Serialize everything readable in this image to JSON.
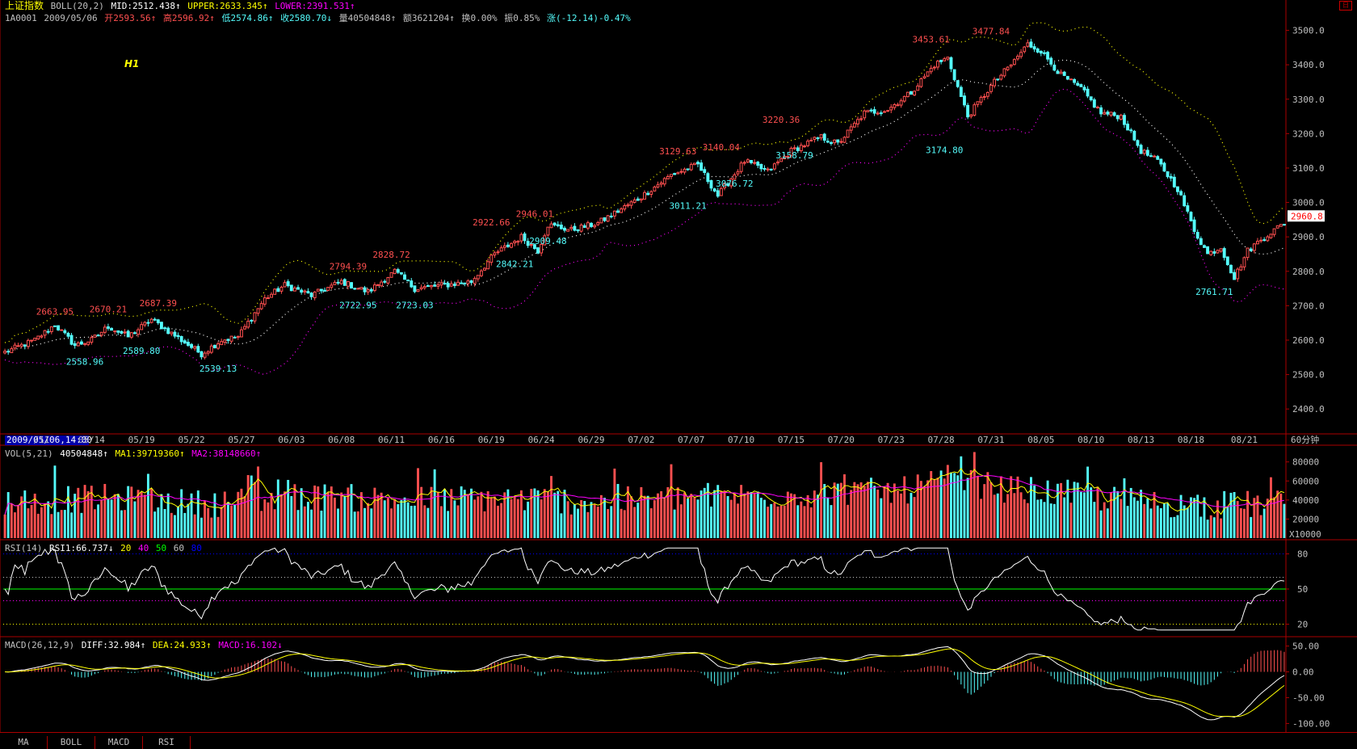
{
  "header": {
    "line1": {
      "index_name": "上证指数",
      "indicator": "BOLL(20,2)",
      "mid": "MID:2512.438↑",
      "upper": "UPPER:2633.345↑",
      "lower": "LOWER:2391.531↑"
    },
    "line2": {
      "code": "1A0001",
      "date": "2009/05/06",
      "open": "开2593.56↑",
      "high": "高2596.92↑",
      "low": "低2574.86↑",
      "close": "收2580.70↓",
      "volume": "量40504848↑",
      "amount": "额3621204↑",
      "turnover": "换0.00%",
      "amplitude": "振0.85%",
      "change": "涨(-12.14)-0.47%"
    },
    "h1_label": "H1"
  },
  "vol_header": {
    "label": "VOL(5,21)",
    "value": "40504848↑",
    "ma1": "MA1:39719360↑",
    "ma2": "MA2:38148660↑"
  },
  "rsi_header": {
    "label": "RSI(14)",
    "rsi1": "RSI1:66.737↓",
    "l20": "20",
    "l40": "40",
    "l50": "50",
    "l60": "60",
    "l80": "80"
  },
  "macd_header": {
    "label": "MACD(26,12,9)",
    "diff": "DIFF:32.984↑",
    "dea": "DEA:24.933↑",
    "macd": "MACD:16.102↓"
  },
  "tabs": [
    "MA",
    "BOLL",
    "MACD",
    "RSI"
  ],
  "corner_button": "日",
  "colors": {
    "up": "#ff5050",
    "down": "#54fcfc",
    "grid": "#aa0000",
    "yellow": "#ffff00",
    "magenta": "#ff00ff",
    "white": "#ffffff",
    "green": "#00ff00",
    "blue": "#0000ff"
  },
  "chart_data": [
    {
      "type": "candlestick",
      "panel": "price",
      "ylim": [
        2330,
        3560
      ],
      "y_ticks": [
        2400,
        2500,
        2600,
        2700,
        2800,
        2900,
        3000,
        3100,
        3200,
        3300,
        3400,
        3500
      ],
      "x_ticks": [
        {
          "label": "2009/05/06,14:00",
          "x": 0
        },
        {
          "label": "/11",
          "x": 11
        },
        {
          "label": "05/14",
          "x": 26
        },
        {
          "label": "05/19",
          "x": 41
        },
        {
          "label": "05/22",
          "x": 56
        },
        {
          "label": "05/27",
          "x": 71
        },
        {
          "label": "06/03",
          "x": 86
        },
        {
          "label": "06/08",
          "x": 101
        },
        {
          "label": "06/11",
          "x": 116
        },
        {
          "label": "06/16",
          "x": 131
        },
        {
          "label": "06/19",
          "x": 146
        },
        {
          "label": "06/24",
          "x": 161
        },
        {
          "label": "06/29",
          "x": 176
        },
        {
          "label": "07/02",
          "x": 191
        },
        {
          "label": "07/07",
          "x": 206
        },
        {
          "label": "07/10",
          "x": 221
        },
        {
          "label": "07/15",
          "x": 236
        },
        {
          "label": "07/20",
          "x": 251
        },
        {
          "label": "07/23",
          "x": 266
        },
        {
          "label": "07/28",
          "x": 281
        },
        {
          "label": "07/31",
          "x": 296
        },
        {
          "label": "08/05",
          "x": 311
        },
        {
          "label": "08/10",
          "x": 326
        },
        {
          "label": "08/13",
          "x": 341
        },
        {
          "label": "08/18",
          "x": 356
        },
        {
          "label": "08/21",
          "x": 372
        }
      ],
      "unit_label": "60分钟",
      "last_price": "2960.8",
      "anchors": [
        [
          0,
          2565
        ],
        [
          9,
          2600
        ],
        [
          15,
          2645
        ],
        [
          21,
          2585
        ],
        [
          26,
          2600
        ],
        [
          31,
          2640
        ],
        [
          37,
          2610
        ],
        [
          44,
          2660
        ],
        [
          50,
          2620
        ],
        [
          59,
          2560
        ],
        [
          65,
          2600
        ],
        [
          70,
          2610
        ],
        [
          78,
          2720
        ],
        [
          84,
          2760
        ],
        [
          92,
          2730
        ],
        [
          101,
          2770
        ],
        [
          109,
          2740
        ],
        [
          117,
          2800
        ],
        [
          123,
          2750
        ],
        [
          132,
          2760
        ],
        [
          140,
          2770
        ],
        [
          147,
          2850
        ],
        [
          155,
          2900
        ],
        [
          160,
          2860
        ],
        [
          163,
          2935
        ],
        [
          170,
          2920
        ],
        [
          178,
          2940
        ],
        [
          190,
          3010
        ],
        [
          200,
          3080
        ],
        [
          208,
          3110
        ],
        [
          214,
          3020
        ],
        [
          222,
          3120
        ],
        [
          229,
          3090
        ],
        [
          236,
          3150
        ],
        [
          245,
          3190
        ],
        [
          250,
          3170
        ],
        [
          258,
          3260
        ],
        [
          265,
          3270
        ],
        [
          272,
          3320
        ],
        [
          279,
          3400
        ],
        [
          283,
          3420
        ],
        [
          289,
          3250
        ],
        [
          293,
          3300
        ],
        [
          297,
          3350
        ],
        [
          302,
          3400
        ],
        [
          307,
          3460
        ],
        [
          311,
          3440
        ],
        [
          317,
          3370
        ],
        [
          323,
          3330
        ],
        [
          329,
          3260
        ],
        [
          335,
          3250
        ],
        [
          341,
          3150
        ],
        [
          346,
          3120
        ],
        [
          352,
          3040
        ],
        [
          357,
          2920
        ],
        [
          361,
          2850
        ],
        [
          365,
          2870
        ],
        [
          369,
          2780
        ],
        [
          373,
          2860
        ],
        [
          378,
          2900
        ],
        [
          384,
          2940
        ]
      ],
      "volume_anchors": [
        [
          0,
          38
        ],
        [
          30,
          42
        ],
        [
          60,
          36
        ],
        [
          90,
          44
        ],
        [
          120,
          40
        ],
        [
          150,
          42
        ],
        [
          180,
          38
        ],
        [
          210,
          44
        ],
        [
          240,
          46
        ],
        [
          270,
          50
        ],
        [
          283,
          62
        ],
        [
          300,
          52
        ],
        [
          320,
          46
        ],
        [
          340,
          38
        ],
        [
          360,
          34
        ],
        [
          384,
          36
        ]
      ],
      "annotations": [
        {
          "text": "2663.95",
          "x": 15,
          "y": 2665,
          "kind": "high"
        },
        {
          "text": "2670.21",
          "x": 31,
          "y": 2672,
          "kind": "high"
        },
        {
          "text": "2687.39",
          "x": 46,
          "y": 2689,
          "kind": "high"
        },
        {
          "text": "2558.96",
          "x": 24,
          "y": 2557,
          "kind": "low"
        },
        {
          "text": "2589.80",
          "x": 41,
          "y": 2588,
          "kind": "low"
        },
        {
          "text": "2539.13",
          "x": 64,
          "y": 2537,
          "kind": "low"
        },
        {
          "text": "2794.39",
          "x": 103,
          "y": 2796,
          "kind": "high"
        },
        {
          "text": "2828.72",
          "x": 116,
          "y": 2830,
          "kind": "high"
        },
        {
          "text": "2722.95",
          "x": 106,
          "y": 2721,
          "kind": "low"
        },
        {
          "text": "2723.03",
          "x": 123,
          "y": 2721,
          "kind": "low"
        },
        {
          "text": "2922.66",
          "x": 146,
          "y": 2924,
          "kind": "high"
        },
        {
          "text": "2946.01",
          "x": 159,
          "y": 2948,
          "kind": "high"
        },
        {
          "text": "2842.21",
          "x": 153,
          "y": 2840,
          "kind": "low"
        },
        {
          "text": "2909.48",
          "x": 163,
          "y": 2907,
          "kind": "low"
        },
        {
          "text": "3129.63",
          "x": 202,
          "y": 3131,
          "kind": "high"
        },
        {
          "text": "3140.04",
          "x": 215,
          "y": 3142,
          "kind": "high"
        },
        {
          "text": "3011.21",
          "x": 205,
          "y": 3009,
          "kind": "low"
        },
        {
          "text": "3076.72",
          "x": 219,
          "y": 3074,
          "kind": "low"
        },
        {
          "text": "3220.36",
          "x": 233,
          "y": 3222,
          "kind": "high"
        },
        {
          "text": "3158.79",
          "x": 237,
          "y": 3156,
          "kind": "low"
        },
        {
          "text": "3453.61",
          "x": 278,
          "y": 3455,
          "kind": "high"
        },
        {
          "text": "3477.84",
          "x": 296,
          "y": 3479,
          "kind": "high"
        },
        {
          "text": "3174.80",
          "x": 282,
          "y": 3172,
          "kind": "low"
        },
        {
          "text": "2761.71",
          "x": 363,
          "y": 2759,
          "kind": "low"
        }
      ]
    },
    {
      "type": "bar",
      "panel": "volume",
      "ylim": [
        0,
        95000
      ],
      "y_ticks": [
        20000,
        40000,
        60000,
        80000
      ],
      "unit": "X10000",
      "series": [
        "VOL",
        "MA1",
        "MA2"
      ]
    },
    {
      "type": "line",
      "panel": "rsi",
      "ylim": [
        10,
        90
      ],
      "y_ticks": [
        20,
        50,
        80
      ],
      "reference_lines": [
        20,
        40,
        50,
        60,
        80
      ],
      "series": [
        "RSI1"
      ]
    },
    {
      "type": "bar",
      "panel": "macd",
      "ylim": [
        -115,
        65
      ],
      "y_ticks": [
        50,
        0,
        -50,
        -100
      ],
      "tick_labels": [
        "50.00",
        "0.00",
        "-50.00",
        "-100.00"
      ],
      "series": [
        "DIFF",
        "DEA",
        "MACD"
      ]
    }
  ]
}
